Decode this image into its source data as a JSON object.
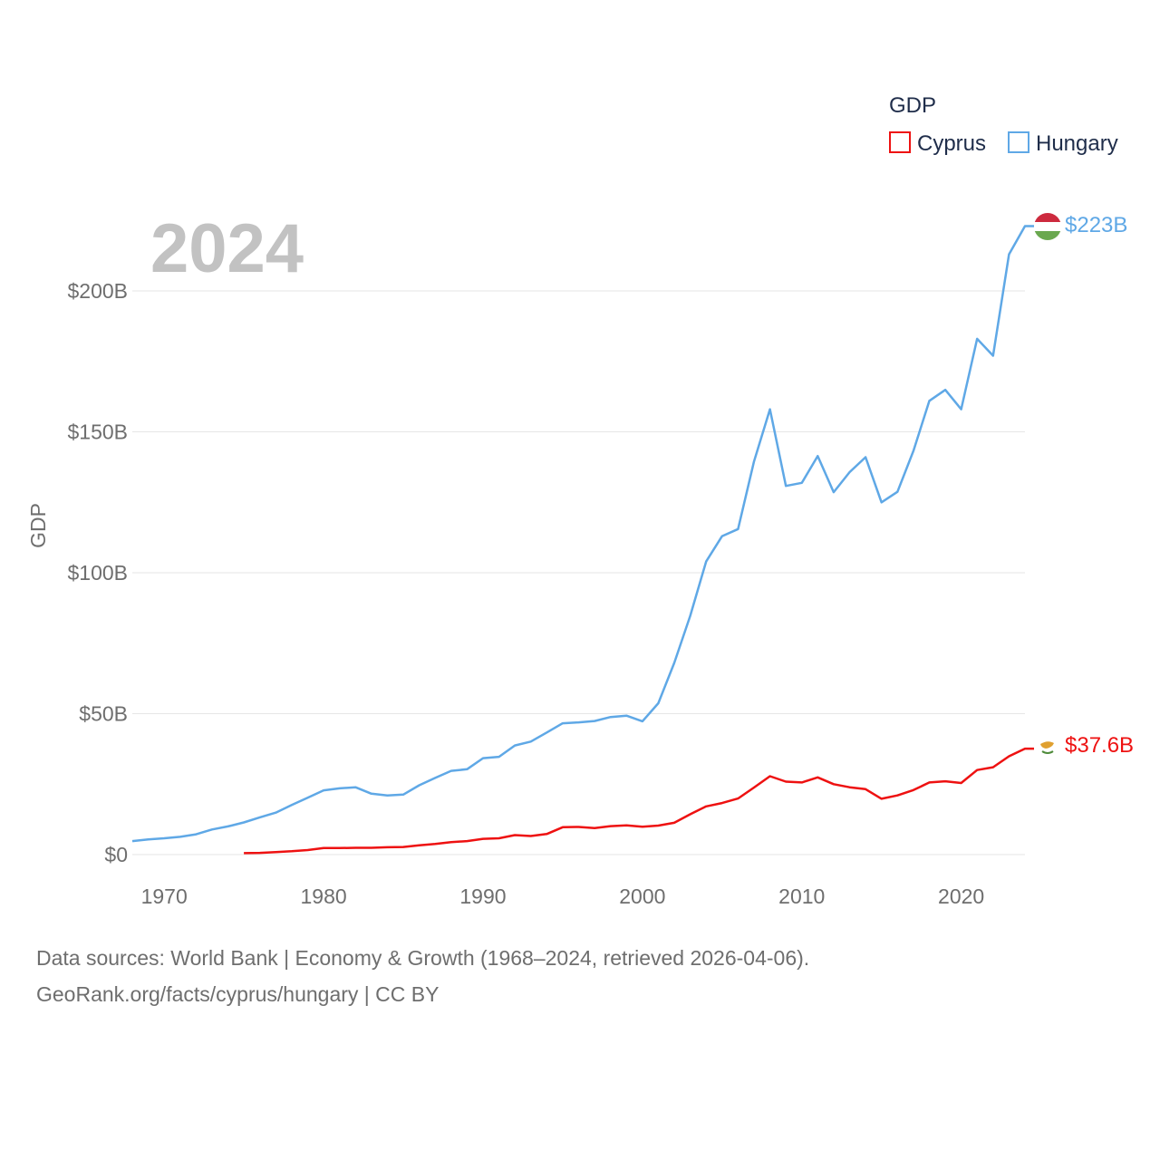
{
  "chart_data": {
    "type": "line",
    "title": "",
    "highlight_year": "2024",
    "xlabel": "",
    "ylabel": "GDP",
    "xlim": [
      1968,
      2024
    ],
    "ylim": [
      0,
      200
    ],
    "unit": "billion USD",
    "x_ticks": [
      1970,
      1980,
      1990,
      2000,
      2010,
      2020
    ],
    "x_tick_labels": [
      "1970",
      "1980",
      "1990",
      "2000",
      "2010",
      "2020"
    ],
    "y_ticks": [
      0,
      50,
      100,
      150,
      200
    ],
    "y_tick_labels": [
      "$0",
      "$50B",
      "$100B",
      "$150B",
      "$200B"
    ],
    "grid": true,
    "legend": {
      "title": "GDP",
      "position": "top-right",
      "entries": [
        "Cyprus",
        "Hungary"
      ]
    },
    "series": [
      {
        "name": "Cyprus",
        "color": "#ee1111",
        "end_label": "$37.6B",
        "flag": "cyprus-flag",
        "x": [
          1975,
          1976,
          1977,
          1978,
          1979,
          1980,
          1981,
          1982,
          1983,
          1984,
          1985,
          1986,
          1987,
          1988,
          1989,
          1990,
          1991,
          1992,
          1993,
          1994,
          1995,
          1996,
          1997,
          1998,
          1999,
          2000,
          2001,
          2002,
          2003,
          2004,
          2005,
          2006,
          2007,
          2008,
          2009,
          2010,
          2011,
          2012,
          2013,
          2014,
          2015,
          2016,
          2017,
          2018,
          2019,
          2020,
          2021,
          2022,
          2023,
          2024
        ],
        "values": [
          0.5,
          0.6,
          0.9,
          1.2,
          1.6,
          2.3,
          2.3,
          2.4,
          2.4,
          2.6,
          2.7,
          3.3,
          3.8,
          4.4,
          4.8,
          5.6,
          5.8,
          6.9,
          6.6,
          7.3,
          9.7,
          9.8,
          9.4,
          10.1,
          10.4,
          9.9,
          10.3,
          11.3,
          14.3,
          17.1,
          18.3,
          19.9,
          23.8,
          27.8,
          25.9,
          25.6,
          27.4,
          25.0,
          23.9,
          23.2,
          19.8,
          21.0,
          22.9,
          25.6,
          26.0,
          25.4,
          30.0,
          31.0,
          34.9,
          37.6
        ]
      },
      {
        "name": "Hungary",
        "color": "#5fa8e6",
        "end_label": "$223B",
        "flag": "hungary-flag",
        "x": [
          1968,
          1969,
          1970,
          1971,
          1972,
          1973,
          1974,
          1975,
          1976,
          1977,
          1978,
          1979,
          1980,
          1981,
          1982,
          1983,
          1984,
          1985,
          1986,
          1987,
          1988,
          1989,
          1990,
          1991,
          1992,
          1993,
          1994,
          1995,
          1996,
          1997,
          1998,
          1999,
          2000,
          2001,
          2002,
          2003,
          2004,
          2005,
          2006,
          2007,
          2008,
          2009,
          2010,
          2011,
          2012,
          2013,
          2014,
          2015,
          2016,
          2017,
          2018,
          2019,
          2020,
          2021,
          2022,
          2023,
          2024
        ],
        "values": [
          4.8,
          5.4,
          5.8,
          6.3,
          7.2,
          8.9,
          10.0,
          11.4,
          13.2,
          14.9,
          17.6,
          20.2,
          22.8,
          23.5,
          23.9,
          21.6,
          21.0,
          21.3,
          24.6,
          27.2,
          29.7,
          30.3,
          34.2,
          34.7,
          38.7,
          40.1,
          43.3,
          46.6,
          46.9,
          47.4,
          48.8,
          49.3,
          47.3,
          53.7,
          68.0,
          84.7,
          104.0,
          113.0,
          115.5,
          139.5,
          158.0,
          130.8,
          131.9,
          141.4,
          128.6,
          135.7,
          141.0,
          125.0,
          128.7,
          143.2,
          161.0,
          164.9,
          158.0,
          183.0,
          177.0,
          213.0,
          223.0
        ]
      }
    ]
  },
  "footer": {
    "line1": "Data sources: World Bank | Economy & Growth (1968–2024, retrieved 2026-04-06).",
    "line2": "GeoRank.org/facts/cyprus/hungary | CC BY"
  }
}
